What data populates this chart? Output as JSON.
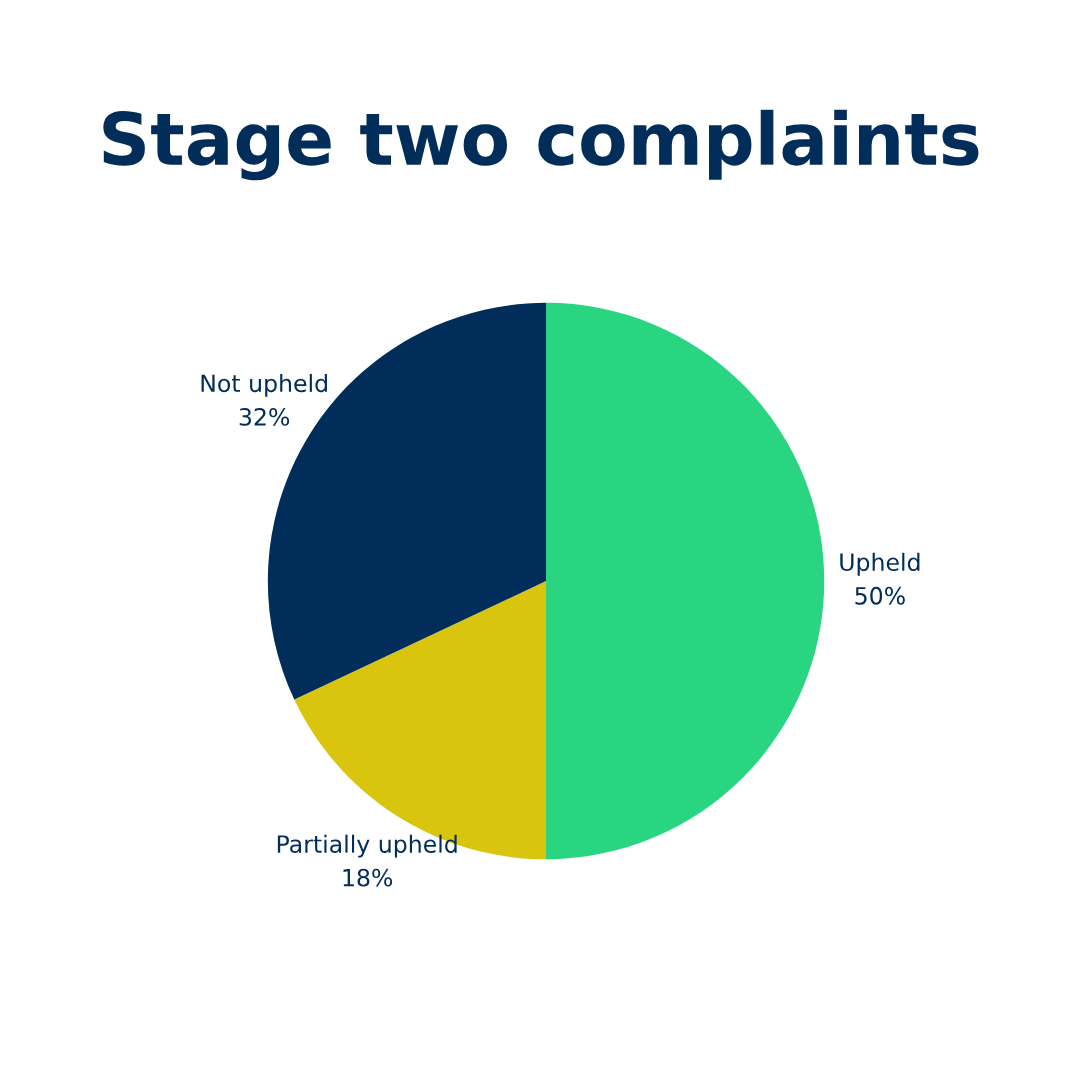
{
  "chart_data": {
    "type": "pie",
    "title": "Stage two complaints",
    "categories": [
      "Upheld",
      "Partially upheld",
      "Not upheld"
    ],
    "values": [
      50,
      18,
      32
    ],
    "value_labels": [
      "50%",
      "18%",
      "32%"
    ],
    "colors": [
      "#2ad582",
      "#d9c40e",
      "#002d59"
    ],
    "legend": false
  }
}
